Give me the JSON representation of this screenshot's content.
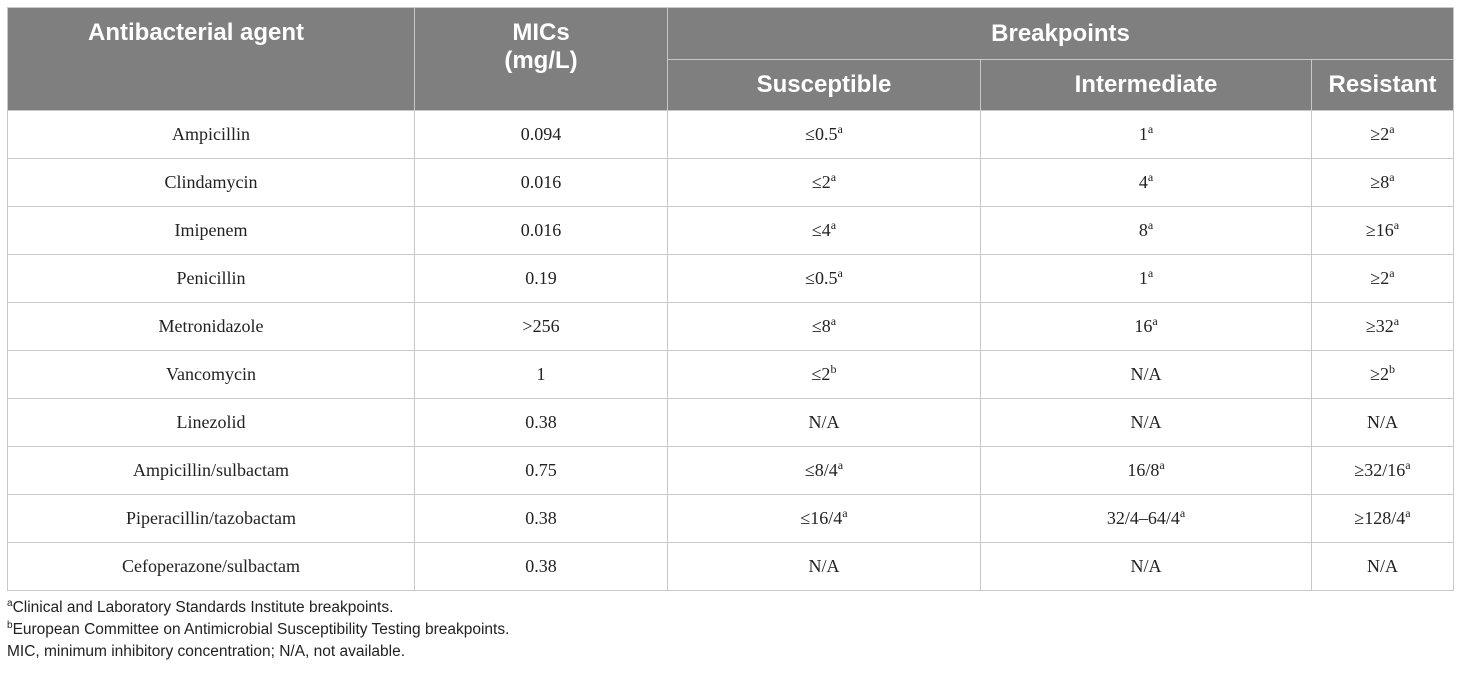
{
  "table": {
    "headers": {
      "agent": "Antibacterial agent",
      "mics_line1": "MICs",
      "mics_line2": "(mg/L)",
      "breakpoints": "Breakpoints",
      "susceptible": "Susceptible",
      "intermediate": "Intermediate",
      "resistant": "Resistant"
    },
    "rows": [
      {
        "agent": "Ampicillin",
        "mic": "0.094",
        "s": "≤0.5",
        "s_note": "a",
        "i": "1",
        "i_note": "a",
        "r": "≥2",
        "r_note": "a"
      },
      {
        "agent": "Clindamycin",
        "mic": "0.016",
        "s": "≤2",
        "s_note": "a",
        "i": "4",
        "i_note": "a",
        "r": "≥8",
        "r_note": "a"
      },
      {
        "agent": "Imipenem",
        "mic": "0.016",
        "s": "≤4",
        "s_note": "a",
        "i": "8",
        "i_note": "a",
        "r": "≥16",
        "r_note": "a"
      },
      {
        "agent": "Penicillin",
        "mic": "0.19",
        "s": "≤0.5",
        "s_note": "a",
        "i": "1",
        "i_note": "a",
        "r": "≥2",
        "r_note": "a"
      },
      {
        "agent": "Metronidazole",
        "mic": ">256",
        "s": "≤8",
        "s_note": "a",
        "i": "16",
        "i_note": "a",
        "r": "≥32",
        "r_note": "a"
      },
      {
        "agent": "Vancomycin",
        "mic": "1",
        "s": "≤2",
        "s_note": "b",
        "i": "N/A",
        "i_note": "",
        "r": "≥2",
        "r_note": "b"
      },
      {
        "agent": "Linezolid",
        "mic": "0.38",
        "s": "N/A",
        "s_note": "",
        "i": "N/A",
        "i_note": "",
        "r": "N/A",
        "r_note": ""
      },
      {
        "agent": "Ampicillin/sulbactam",
        "mic": "0.75",
        "s": "≤8/4",
        "s_note": "a",
        "i": "16/8",
        "i_note": "a",
        "r": "≥32/16",
        "r_note": "a"
      },
      {
        "agent": "Piperacillin/tazobactam",
        "mic": "0.38",
        "s": "≤16/4",
        "s_note": "a",
        "i": "32/4–64/4",
        "i_note": "a",
        "r": "≥128/4",
        "r_note": "a"
      },
      {
        "agent": "Cefoperazone/sulbactam",
        "mic": "0.38",
        "s": "N/A",
        "s_note": "",
        "i": "N/A",
        "i_note": "",
        "r": "N/A",
        "r_note": ""
      }
    ]
  },
  "footnotes": {
    "a_mark": "a",
    "a_text": "Clinical and Laboratory Standards Institute breakpoints.",
    "b_mark": "b",
    "b_text": "European Committee on Antimicrobial Susceptibility Testing breakpoints.",
    "abbrev": "MIC, minimum inhibitory concentration; N/A, not available."
  }
}
